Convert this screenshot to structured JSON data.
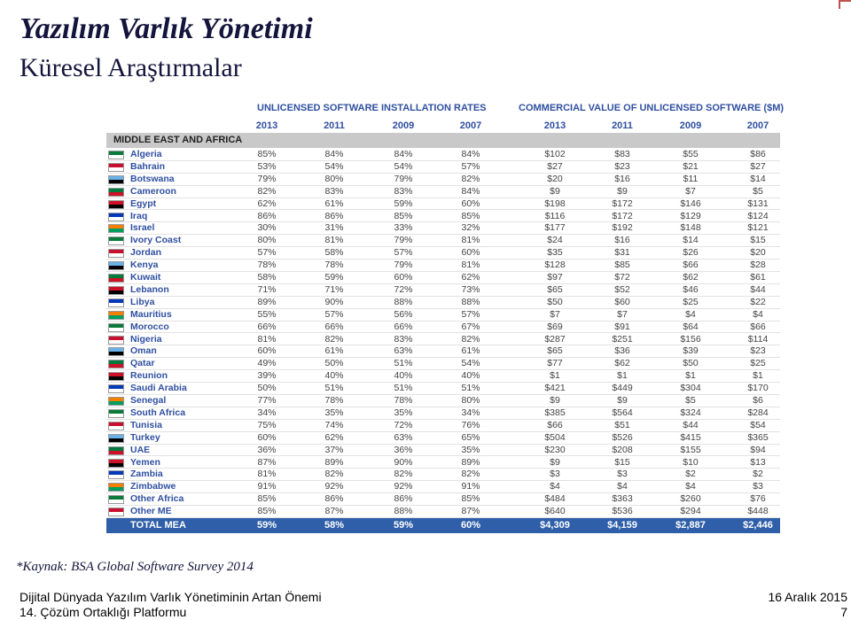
{
  "title": "Yazılım Varlık Yönetimi",
  "subtitle": "Küresel Araştırmalar",
  "table": {
    "group_headers": [
      "UNLICENSED SOFTWARE INSTALLATION RATES",
      "COMMERCIAL VALUE OF UNLICENSED SOFTWARE ($M)"
    ],
    "years": [
      "2013",
      "2011",
      "2009",
      "2007",
      "2013",
      "2011",
      "2009",
      "2007"
    ],
    "region": "MIDDLE EAST AND AFRICA",
    "rows": [
      [
        "Algeria",
        "85%",
        "84%",
        "84%",
        "84%",
        "$102",
        "$83",
        "$55",
        "$86"
      ],
      [
        "Bahrain",
        "53%",
        "54%",
        "54%",
        "57%",
        "$27",
        "$23",
        "$21",
        "$27"
      ],
      [
        "Botswana",
        "79%",
        "80%",
        "79%",
        "82%",
        "$20",
        "$16",
        "$11",
        "$14"
      ],
      [
        "Cameroon",
        "82%",
        "83%",
        "83%",
        "84%",
        "$9",
        "$9",
        "$7",
        "$5"
      ],
      [
        "Egypt",
        "62%",
        "61%",
        "59%",
        "60%",
        "$198",
        "$172",
        "$146",
        "$131"
      ],
      [
        "Iraq",
        "86%",
        "86%",
        "85%",
        "85%",
        "$116",
        "$172",
        "$129",
        "$124"
      ],
      [
        "Israel",
        "30%",
        "31%",
        "33%",
        "32%",
        "$177",
        "$192",
        "$148",
        "$121"
      ],
      [
        "Ivory Coast",
        "80%",
        "81%",
        "79%",
        "81%",
        "$24",
        "$16",
        "$14",
        "$15"
      ],
      [
        "Jordan",
        "57%",
        "58%",
        "57%",
        "60%",
        "$35",
        "$31",
        "$26",
        "$20"
      ],
      [
        "Kenya",
        "78%",
        "78%",
        "79%",
        "81%",
        "$128",
        "$85",
        "$66",
        "$28"
      ],
      [
        "Kuwait",
        "58%",
        "59%",
        "60%",
        "62%",
        "$97",
        "$72",
        "$62",
        "$61"
      ],
      [
        "Lebanon",
        "71%",
        "71%",
        "72%",
        "73%",
        "$65",
        "$52",
        "$46",
        "$44"
      ],
      [
        "Libya",
        "89%",
        "90%",
        "88%",
        "88%",
        "$50",
        "$60",
        "$25",
        "$22"
      ],
      [
        "Mauritius",
        "55%",
        "57%",
        "56%",
        "57%",
        "$7",
        "$7",
        "$4",
        "$4"
      ],
      [
        "Morocco",
        "66%",
        "66%",
        "66%",
        "67%",
        "$69",
        "$91",
        "$64",
        "$66"
      ],
      [
        "Nigeria",
        "81%",
        "82%",
        "83%",
        "82%",
        "$287",
        "$251",
        "$156",
        "$114"
      ],
      [
        "Oman",
        "60%",
        "61%",
        "63%",
        "61%",
        "$65",
        "$36",
        "$39",
        "$23"
      ],
      [
        "Qatar",
        "49%",
        "50%",
        "51%",
        "54%",
        "$77",
        "$62",
        "$50",
        "$25"
      ],
      [
        "Reunion",
        "39%",
        "40%",
        "40%",
        "40%",
        "$1",
        "$1",
        "$1",
        "$1"
      ],
      [
        "Saudi Arabia",
        "50%",
        "51%",
        "51%",
        "51%",
        "$421",
        "$449",
        "$304",
        "$170"
      ],
      [
        "Senegal",
        "77%",
        "78%",
        "78%",
        "80%",
        "$9",
        "$9",
        "$5",
        "$6"
      ],
      [
        "South Africa",
        "34%",
        "35%",
        "35%",
        "34%",
        "$385",
        "$564",
        "$324",
        "$284"
      ],
      [
        "Tunisia",
        "75%",
        "74%",
        "72%",
        "76%",
        "$66",
        "$51",
        "$44",
        "$54"
      ],
      [
        "Turkey",
        "60%",
        "62%",
        "63%",
        "65%",
        "$504",
        "$526",
        "$415",
        "$365"
      ],
      [
        "UAE",
        "36%",
        "37%",
        "36%",
        "35%",
        "$230",
        "$208",
        "$155",
        "$94"
      ],
      [
        "Yemen",
        "87%",
        "89%",
        "90%",
        "89%",
        "$9",
        "$15",
        "$10",
        "$13"
      ],
      [
        "Zambia",
        "81%",
        "82%",
        "82%",
        "82%",
        "$3",
        "$3",
        "$2",
        "$2"
      ],
      [
        "Zimbabwe",
        "91%",
        "92%",
        "92%",
        "91%",
        "$4",
        "$4",
        "$4",
        "$3"
      ],
      [
        "Other Africa",
        "85%",
        "86%",
        "86%",
        "85%",
        "$484",
        "$363",
        "$260",
        "$76"
      ],
      [
        "Other ME",
        "85%",
        "87%",
        "88%",
        "87%",
        "$640",
        "$536",
        "$294",
        "$448"
      ]
    ],
    "total": [
      "TOTAL MEA",
      "59%",
      "58%",
      "59%",
      "60%",
      "$4,309",
      "$4,159",
      "$2,887",
      "$2,446"
    ]
  },
  "source": "*Kaynak: BSA Global Software Survey 2014",
  "footer": {
    "line1": "Dijital Dünyada Yazılım Varlık Yönetiminin Artan Önemi",
    "line2": "14. Çözüm Ortaklığı Platformu",
    "date": "16 Aralık 2015",
    "page": "7"
  }
}
